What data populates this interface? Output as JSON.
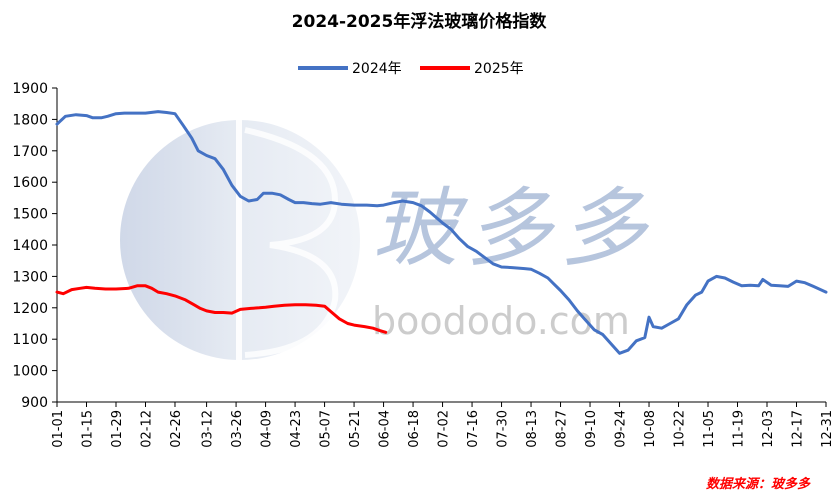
{
  "chart_data": {
    "type": "line",
    "title": "2024-2025年浮法玻璃价格指数",
    "xlabel": "",
    "ylabel": "",
    "ylim": [
      900,
      1900
    ],
    "yticks": [
      900,
      1000,
      1100,
      1200,
      1300,
      1400,
      1500,
      1600,
      1700,
      1800,
      1900
    ],
    "x_ticks": [
      "01-01",
      "01-15",
      "01-29",
      "02-12",
      "02-26",
      "03-12",
      "03-26",
      "04-09",
      "04-23",
      "05-07",
      "05-21",
      "06-04",
      "06-18",
      "07-02",
      "07-16",
      "07-30",
      "08-13",
      "08-27",
      "09-10",
      "09-24",
      "10-08",
      "10-22",
      "11-05",
      "11-19",
      "12-03",
      "12-17",
      "12-31"
    ],
    "legend_position": "top-center",
    "grid": false,
    "series": [
      {
        "name": "2024年",
        "color": "#4472c4",
        "points": [
          [
            "01-01",
            1785
          ],
          [
            "01-05",
            1810
          ],
          [
            "01-10",
            1815
          ],
          [
            "01-15",
            1812
          ],
          [
            "01-18",
            1805
          ],
          [
            "01-22",
            1805
          ],
          [
            "01-25",
            1810
          ],
          [
            "01-29",
            1818
          ],
          [
            "02-02",
            1820
          ],
          [
            "02-08",
            1820
          ],
          [
            "02-12",
            1820
          ],
          [
            "02-18",
            1825
          ],
          [
            "02-22",
            1822
          ],
          [
            "02-26",
            1818
          ],
          [
            "03-01",
            1780
          ],
          [
            "03-05",
            1740
          ],
          [
            "03-08",
            1700
          ],
          [
            "03-12",
            1685
          ],
          [
            "03-16",
            1675
          ],
          [
            "03-20",
            1640
          ],
          [
            "03-24",
            1590
          ],
          [
            "03-28",
            1555
          ],
          [
            "04-01",
            1540
          ],
          [
            "04-05",
            1545
          ],
          [
            "04-08",
            1565
          ],
          [
            "04-12",
            1565
          ],
          [
            "04-16",
            1560
          ],
          [
            "04-20",
            1545
          ],
          [
            "04-23",
            1535
          ],
          [
            "04-27",
            1535
          ],
          [
            "05-01",
            1532
          ],
          [
            "05-05",
            1530
          ],
          [
            "05-10",
            1535
          ],
          [
            "05-15",
            1530
          ],
          [
            "05-21",
            1527
          ],
          [
            "05-27",
            1527
          ],
          [
            "06-01",
            1525
          ],
          [
            "06-04",
            1527
          ],
          [
            "06-09",
            1535
          ],
          [
            "06-13",
            1540
          ],
          [
            "06-18",
            1535
          ],
          [
            "06-22",
            1525
          ],
          [
            "06-26",
            1505
          ],
          [
            "07-02",
            1470
          ],
          [
            "07-06",
            1450
          ],
          [
            "07-10",
            1420
          ],
          [
            "07-14",
            1395
          ],
          [
            "07-18",
            1380
          ],
          [
            "07-22",
            1360
          ],
          [
            "07-26",
            1340
          ],
          [
            "07-30",
            1330
          ],
          [
            "08-04",
            1328
          ],
          [
            "08-10",
            1325
          ],
          [
            "08-13",
            1323
          ],
          [
            "08-17",
            1310
          ],
          [
            "08-21",
            1295
          ],
          [
            "08-24",
            1275
          ],
          [
            "08-27",
            1255
          ],
          [
            "08-31",
            1225
          ],
          [
            "09-04",
            1190
          ],
          [
            "09-08",
            1160
          ],
          [
            "09-12",
            1130
          ],
          [
            "09-16",
            1115
          ],
          [
            "09-20",
            1085
          ],
          [
            "09-24",
            1055
          ],
          [
            "09-28",
            1065
          ],
          [
            "10-02",
            1095
          ],
          [
            "10-06",
            1105
          ],
          [
            "10-08",
            1170
          ],
          [
            "10-10",
            1140
          ],
          [
            "10-14",
            1135
          ],
          [
            "10-18",
            1150
          ],
          [
            "10-22",
            1165
          ],
          [
            "10-26",
            1210
          ],
          [
            "10-30",
            1240
          ],
          [
            "11-02",
            1250
          ],
          [
            "11-05",
            1285
          ],
          [
            "11-09",
            1300
          ],
          [
            "11-13",
            1295
          ],
          [
            "11-17",
            1282
          ],
          [
            "11-21",
            1270
          ],
          [
            "11-25",
            1272
          ],
          [
            "11-29",
            1270
          ],
          [
            "12-01",
            1290
          ],
          [
            "12-05",
            1272
          ],
          [
            "12-09",
            1270
          ],
          [
            "12-13",
            1268
          ],
          [
            "12-17",
            1285
          ],
          [
            "12-21",
            1280
          ],
          [
            "12-25",
            1268
          ],
          [
            "12-31",
            1250
          ]
        ]
      },
      {
        "name": "2025年",
        "color": "#ff0000",
        "points": [
          [
            "01-01",
            1250
          ],
          [
            "01-04",
            1245
          ],
          [
            "01-08",
            1258
          ],
          [
            "01-12",
            1262
          ],
          [
            "01-15",
            1265
          ],
          [
            "01-19",
            1262
          ],
          [
            "01-24",
            1260
          ],
          [
            "01-29",
            1260
          ],
          [
            "02-04",
            1262
          ],
          [
            "02-08",
            1270
          ],
          [
            "02-12",
            1270
          ],
          [
            "02-15",
            1262
          ],
          [
            "02-18",
            1250
          ],
          [
            "02-22",
            1245
          ],
          [
            "02-26",
            1238
          ],
          [
            "03-02",
            1225
          ],
          [
            "03-06",
            1210
          ],
          [
            "03-09",
            1198
          ],
          [
            "03-12",
            1190
          ],
          [
            "03-16",
            1185
          ],
          [
            "03-20",
            1185
          ],
          [
            "03-24",
            1183
          ],
          [
            "03-28",
            1195
          ],
          [
            "04-02",
            1198
          ],
          [
            "04-06",
            1200
          ],
          [
            "04-09",
            1202
          ],
          [
            "04-13",
            1205
          ],
          [
            "04-18",
            1208
          ],
          [
            "04-23",
            1210
          ],
          [
            "04-28",
            1210
          ],
          [
            "05-03",
            1208
          ],
          [
            "05-07",
            1205
          ],
          [
            "05-10",
            1188
          ],
          [
            "05-14",
            1165
          ],
          [
            "05-18",
            1150
          ],
          [
            "05-21",
            1145
          ],
          [
            "05-26",
            1140
          ],
          [
            "05-30",
            1135
          ],
          [
            "06-02",
            1128
          ],
          [
            "06-05",
            1122
          ]
        ]
      }
    ]
  },
  "watermark": {
    "cn": "玻多多",
    "en": "boododo.com"
  },
  "source_note": "数据来源：玻多多"
}
